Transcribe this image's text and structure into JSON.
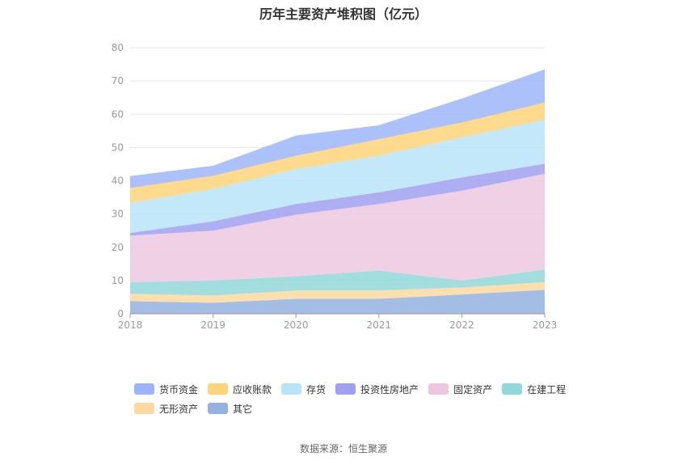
{
  "title": "历年主要资产堆积图（亿元）",
  "source": "数据来源：恒生聚源",
  "chart_data": {
    "type": "area",
    "stacked": true,
    "categories": [
      "2018",
      "2019",
      "2020",
      "2021",
      "2022",
      "2023"
    ],
    "ylim": [
      0,
      80
    ],
    "yticks": [
      0,
      10,
      20,
      30,
      40,
      50,
      60,
      70,
      80
    ],
    "grid": true,
    "legend_position": "bottom",
    "series": [
      {
        "name": "其它",
        "color": "#93b2e0",
        "values": [
          3.8,
          3.3,
          4.5,
          4.5,
          5.8,
          7.2
        ]
      },
      {
        "name": "无形资产",
        "color": "#fdd9a0",
        "values": [
          2.2,
          2.2,
          2.5,
          2.5,
          2.1,
          2.3
        ]
      },
      {
        "name": "在建工程",
        "color": "#93d8d8",
        "values": [
          3.5,
          4.5,
          4.3,
          6.0,
          2.1,
          3.8
        ]
      },
      {
        "name": "固定资产",
        "color": "#ecc8e0",
        "values": [
          14.0,
          15.0,
          18.5,
          20.0,
          27.0,
          28.8
        ]
      },
      {
        "name": "投资性房地产",
        "color": "#a0a0f0",
        "values": [
          0.8,
          2.8,
          3.2,
          3.5,
          4.0,
          3.0
        ]
      },
      {
        "name": "存货",
        "color": "#b8e4f8",
        "values": [
          9.0,
          9.7,
          10.5,
          11.0,
          12.0,
          13.2
        ]
      },
      {
        "name": "应收账款",
        "color": "#fdd47a",
        "values": [
          4.5,
          4.0,
          4.0,
          5.0,
          4.5,
          5.2
        ]
      },
      {
        "name": "货币资金",
        "color": "#9db5f8",
        "values": [
          3.6,
          3.0,
          6.1,
          4.2,
          7.2,
          10.0
        ]
      }
    ]
  },
  "legend_order": [
    "货币资金",
    "应收账款",
    "存货",
    "投资性房地产",
    "固定资产",
    "在建工程",
    "无形资产",
    "其它"
  ]
}
